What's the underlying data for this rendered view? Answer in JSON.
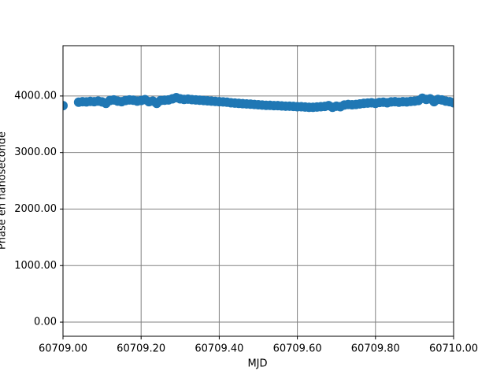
{
  "chart_data": {
    "type": "scatter",
    "xlabel": "MJD",
    "ylabel": "Phase en nanoseconde",
    "color": "#1f77b4",
    "grid": true,
    "xlim": [
      60709.0,
      60710.0
    ],
    "xticks": [
      {
        "value": 60709.0,
        "label": "60709.00"
      },
      {
        "value": 60709.2,
        "label": "60709.20"
      },
      {
        "value": 60709.4,
        "label": "60709.40"
      },
      {
        "value": 60709.6,
        "label": "60709.60"
      },
      {
        "value": 60709.8,
        "label": "60709.80"
      },
      {
        "value": 60710.0,
        "label": "60710.00"
      }
    ],
    "ylim": [
      -250,
      4890
    ],
    "yticks": [
      {
        "value": 0,
        "label": "0.00"
      },
      {
        "value": 1000,
        "label": "1000.00"
      },
      {
        "value": 2000,
        "label": "2000.00"
      },
      {
        "value": 3000,
        "label": "3000.00"
      },
      {
        "value": 4000,
        "label": "4000.00"
      }
    ],
    "x": [
      60709.0,
      60709.04,
      60709.05,
      60709.06,
      60709.07,
      60709.08,
      60709.09,
      60709.1,
      60709.11,
      60709.12,
      60709.13,
      60709.14,
      60709.15,
      60709.16,
      60709.17,
      60709.18,
      60709.19,
      60709.2,
      60709.21,
      60709.22,
      60709.23,
      60709.24,
      60709.25,
      60709.26,
      60709.27,
      60709.28,
      60709.29,
      60709.3,
      60709.31,
      60709.32,
      60709.33,
      60709.34,
      60709.35,
      60709.36,
      60709.37,
      60709.38,
      60709.39,
      60709.4,
      60709.41,
      60709.42,
      60709.43,
      60709.44,
      60709.45,
      60709.46,
      60709.47,
      60709.48,
      60709.49,
      60709.5,
      60709.51,
      60709.52,
      60709.53,
      60709.54,
      60709.55,
      60709.56,
      60709.57,
      60709.58,
      60709.59,
      60709.6,
      60709.61,
      60709.62,
      60709.63,
      60709.64,
      60709.65,
      60709.66,
      60709.67,
      60709.68,
      60709.69,
      60709.7,
      60709.71,
      60709.72,
      60709.73,
      60709.74,
      60709.75,
      60709.76,
      60709.77,
      60709.78,
      60709.79,
      60709.8,
      60709.81,
      60709.82,
      60709.83,
      60709.84,
      60709.85,
      60709.86,
      60709.87,
      60709.88,
      60709.89,
      60709.9,
      60709.91,
      60709.92,
      60709.93,
      60709.94,
      60709.95,
      60709.96,
      60709.97,
      60709.98,
      60709.99,
      60710.0
    ],
    "values": [
      3830,
      3890,
      3900,
      3895,
      3905,
      3900,
      3910,
      3895,
      3870,
      3920,
      3930,
      3910,
      3900,
      3920,
      3930,
      3925,
      3910,
      3920,
      3935,
      3900,
      3910,
      3870,
      3920,
      3925,
      3930,
      3950,
      3970,
      3950,
      3940,
      3945,
      3935,
      3930,
      3925,
      3920,
      3915,
      3910,
      3905,
      3900,
      3895,
      3890,
      3880,
      3875,
      3870,
      3865,
      3860,
      3855,
      3850,
      3845,
      3840,
      3835,
      3835,
      3830,
      3830,
      3825,
      3820,
      3820,
      3815,
      3810,
      3810,
      3805,
      3800,
      3800,
      3805,
      3810,
      3815,
      3830,
      3800,
      3820,
      3810,
      3840,
      3850,
      3845,
      3850,
      3860,
      3870,
      3875,
      3880,
      3870,
      3885,
      3890,
      3880,
      3895,
      3900,
      3890,
      3900,
      3895,
      3905,
      3910,
      3920,
      3960,
      3940,
      3950,
      3900,
      3940,
      3930,
      3910,
      3900,
      3880
    ]
  }
}
